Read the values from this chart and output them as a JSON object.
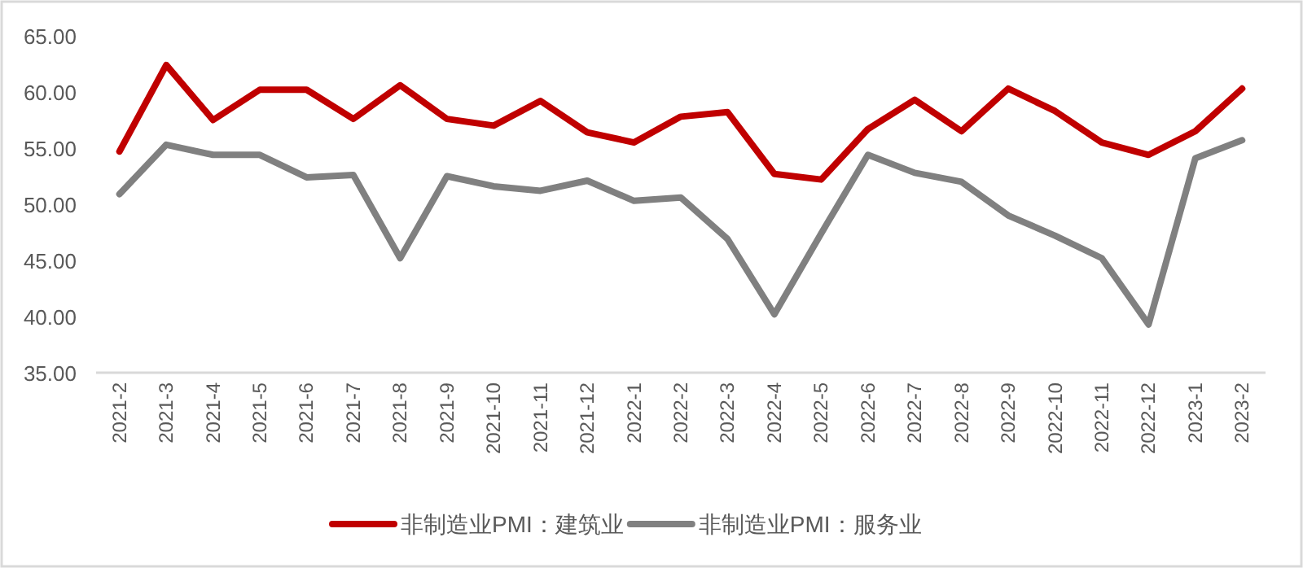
{
  "chart_data": {
    "type": "line",
    "categories": [
      "2021-2",
      "2021-3",
      "2021-4",
      "2021-5",
      "2021-6",
      "2021-7",
      "2021-8",
      "2021-9",
      "2021-10",
      "2021-11",
      "2021-12",
      "2022-1",
      "2022-2",
      "2022-3",
      "2022-4",
      "2022-5",
      "2022-6",
      "2022-7",
      "2022-8",
      "2022-9",
      "2022-10",
      "2022-11",
      "2022-12",
      "2023-1",
      "2023-2"
    ],
    "series": [
      {
        "name": "非制造业PMI：建筑业",
        "color": "#c00000",
        "values": [
          54.7,
          62.4,
          57.5,
          60.2,
          60.2,
          57.6,
          60.6,
          57.6,
          57.0,
          59.2,
          56.4,
          55.5,
          57.8,
          58.2,
          52.7,
          52.2,
          56.7,
          59.3,
          56.5,
          60.3,
          58.3,
          55.5,
          54.4,
          56.5,
          60.3
        ]
      },
      {
        "name": "非制造业PMI：服务业",
        "color": "#808080",
        "values": [
          50.9,
          55.3,
          54.4,
          54.4,
          52.4,
          52.6,
          45.2,
          52.5,
          51.6,
          51.2,
          52.1,
          50.3,
          50.6,
          46.9,
          40.2,
          47.4,
          54.4,
          52.8,
          52.0,
          49.0,
          47.2,
          45.2,
          39.3,
          54.1,
          55.7
        ]
      }
    ],
    "ylim": [
      35,
      65
    ],
    "yticks": [
      {
        "value": 35,
        "label": "35.00"
      },
      {
        "value": 40,
        "label": "40.00"
      },
      {
        "value": 45,
        "label": "45.00"
      },
      {
        "value": 50,
        "label": "50.00"
      },
      {
        "value": 55,
        "label": "55.00"
      },
      {
        "value": 60,
        "label": "60.00"
      },
      {
        "value": 65,
        "label": "65.00"
      }
    ],
    "grid": false,
    "legend": "bottom",
    "marker": "none",
    "line_style": "solid"
  }
}
